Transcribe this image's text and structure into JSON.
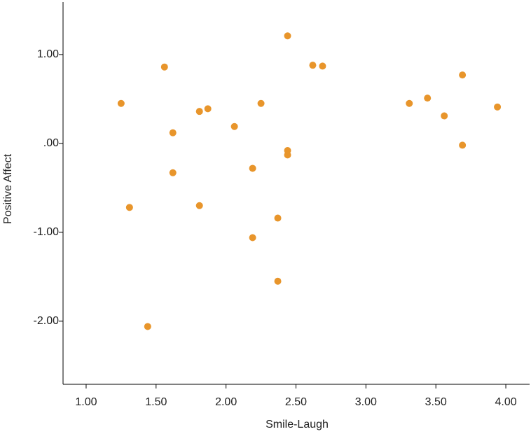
{
  "chart_data": {
    "type": "scatter",
    "x_label": "Smile-Laugh",
    "y_label": "Positive Affect",
    "x": [
      1.25,
      1.31,
      1.44,
      1.56,
      1.62,
      1.62,
      1.81,
      1.81,
      1.87,
      2.06,
      2.19,
      2.19,
      2.25,
      2.37,
      2.37,
      2.44,
      2.44,
      2.44,
      2.62,
      2.69,
      3.31,
      3.44,
      3.56,
      3.69,
      3.69,
      3.94
    ],
    "values": [
      0.45,
      -0.72,
      -2.06,
      0.86,
      0.12,
      -0.33,
      0.36,
      -0.7,
      0.39,
      0.19,
      -0.28,
      -1.06,
      0.45,
      -0.84,
      -1.55,
      1.21,
      -0.08,
      -0.13,
      0.88,
      0.87,
      0.45,
      0.51,
      0.31,
      0.77,
      -0.02,
      0.41
    ],
    "color": "#e8952b",
    "xlim": [
      0.835,
      4.17
    ],
    "ylim": [
      -2.71,
      1.59
    ],
    "xticks": [
      {
        "value": 1,
        "label": "1.00"
      },
      {
        "value": 1.5,
        "label": "1.50"
      },
      {
        "value": 2,
        "label": "2.00"
      },
      {
        "value": 2.5,
        "label": "2.50"
      },
      {
        "value": 3,
        "label": "3.00"
      },
      {
        "value": 3.5,
        "label": "3.50"
      },
      {
        "value": 4,
        "label": "4.00"
      }
    ],
    "yticks": [
      {
        "value": 1,
        "label": "1.00"
      },
      {
        "value": 0,
        "label": ".00"
      },
      {
        "value": -1,
        "label": "-1.00"
      },
      {
        "value": -2,
        "label": "-2.00"
      }
    ],
    "grid": false
  }
}
